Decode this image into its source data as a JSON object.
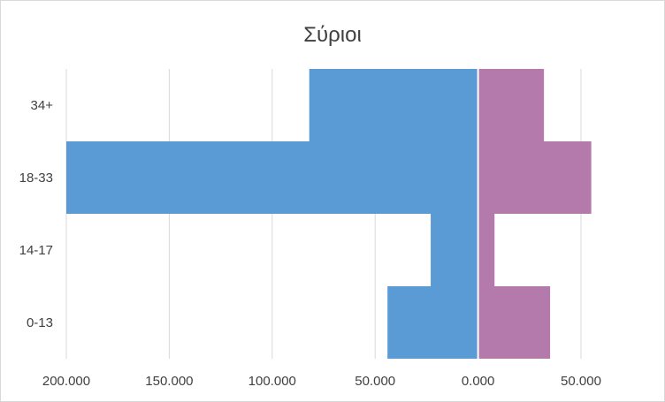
{
  "chart_data": {
    "type": "bar",
    "orientation": "horizontal",
    "layout": "population-pyramid",
    "title": "Σύριοι",
    "categories": [
      "34+",
      "18-33",
      "14-17",
      "0-13"
    ],
    "series": [
      {
        "values": [
          -82000,
          -200000,
          -23000,
          -44000
        ],
        "color": "#5b9bd5"
      },
      {
        "values": [
          32000,
          55000,
          8000,
          35000
        ],
        "color": "#b57aac"
      }
    ],
    "xlim": [
      -200000,
      50000
    ],
    "x_ticks": [
      -200000,
      -150000,
      -100000,
      -50000,
      0,
      50000
    ],
    "x_tick_labels": [
      "200.000",
      "150.000",
      "100.000",
      "50.000",
      "0.000",
      "50.000"
    ],
    "grid": "vertical",
    "legend": "none"
  }
}
